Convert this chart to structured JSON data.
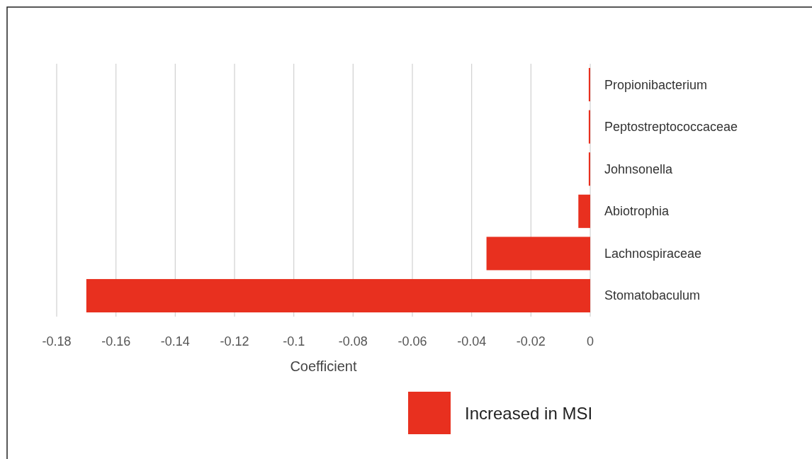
{
  "chart_data": {
    "type": "bar",
    "orientation": "horizontal",
    "xlabel": "Coefficient",
    "categories": [
      "Propionibacterium",
      "Peptostreptococcaceae",
      "Johnsonella",
      "Abiotrophia",
      "Lachnospiraceae",
      "Stomatobaculum"
    ],
    "series": [
      {
        "name": "Increased in MSI",
        "color": "#e8301f",
        "values": [
          -0.0005,
          -0.0005,
          -0.0005,
          -0.004,
          -0.035,
          -0.17
        ]
      }
    ],
    "xlim": [
      -0.18,
      0
    ],
    "xticks": [
      -0.18,
      -0.16,
      -0.14,
      -0.12,
      -0.1,
      -0.08,
      -0.06,
      -0.04,
      -0.02,
      0
    ],
    "grid": "x",
    "legend": "bottom"
  }
}
